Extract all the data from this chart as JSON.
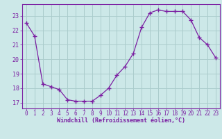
{
  "x": [
    0,
    1,
    2,
    3,
    4,
    5,
    6,
    7,
    8,
    9,
    10,
    11,
    12,
    13,
    14,
    15,
    16,
    17,
    18,
    19,
    20,
    21,
    22,
    23
  ],
  "y": [
    22.5,
    21.6,
    18.3,
    18.1,
    17.9,
    17.2,
    17.1,
    17.1,
    17.1,
    17.5,
    18.0,
    18.9,
    19.5,
    20.4,
    22.2,
    23.2,
    23.4,
    23.3,
    23.3,
    23.3,
    22.7,
    21.5,
    21.0,
    20.1
  ],
  "line_color": "#7b1fa2",
  "marker": "+",
  "marker_size": 4,
  "marker_linewidth": 1.0,
  "line_width": 0.9,
  "bg_color": "#cce8e8",
  "grid_color": "#aacccc",
  "yticks": [
    17,
    18,
    19,
    20,
    21,
    22,
    23
  ],
  "xlabel": "Windchill (Refroidissement éolien,°C)",
  "xlim": [
    -0.5,
    23.5
  ],
  "ylim": [
    16.6,
    23.8
  ],
  "tick_color": "#7b1fa2",
  "xlabel_color": "#7b1fa2",
  "spine_color": "#7b1fa2",
  "tick_fontsize": 5.5,
  "xlabel_fontsize": 6.0
}
